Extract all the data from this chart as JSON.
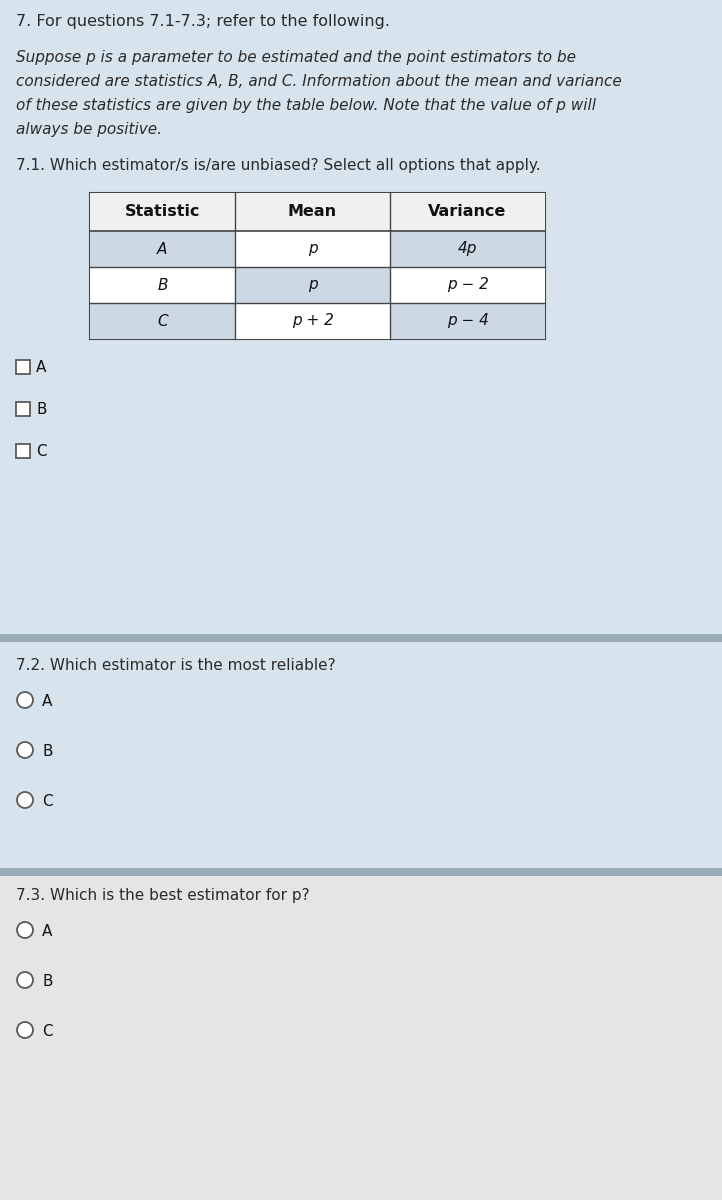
{
  "bg_main": "#d8e4ed",
  "bg_section1": "#d8e4ed",
  "bg_section2": "#d8e4ed",
  "bg_section3": "#e5e5e5",
  "separator_color": "#9aabb8",
  "text_color": "#2a2a2a",
  "header_text": "7. For questions 7.1-7.3; refer to the following.",
  "intro_lines": [
    "Suppose p is a parameter to be estimated and the point estimators to be",
    "considered are statistics A, B, and C. Information about the mean and variance",
    "of these statistics are given by the table below. Note that the value of p will",
    "always be positive."
  ],
  "q71_text": "7.1. Which estimator/s is/are unbiased? Select all options that apply.",
  "q72_text": "7.2. Which estimator is the most reliable?",
  "q73_text": "7.3. Which is the best estimator for p?",
  "table_headers": [
    "Statistic",
    "Mean",
    "Variance"
  ],
  "table_rows": [
    [
      "A",
      "p",
      "4p"
    ],
    [
      "B",
      "p",
      "p − 2"
    ],
    [
      "C",
      "p + 2",
      "p − 4"
    ]
  ],
  "checkbox_labels": [
    "A",
    "B",
    "C"
  ],
  "radio_labels_72": [
    "A",
    "B",
    "C"
  ],
  "radio_labels_73": [
    "A",
    "B",
    "C"
  ],
  "table_cell_bg": "#ccd9e5",
  "table_white_bg": "#ffffff",
  "table_header_bg": "#f0f0f0"
}
